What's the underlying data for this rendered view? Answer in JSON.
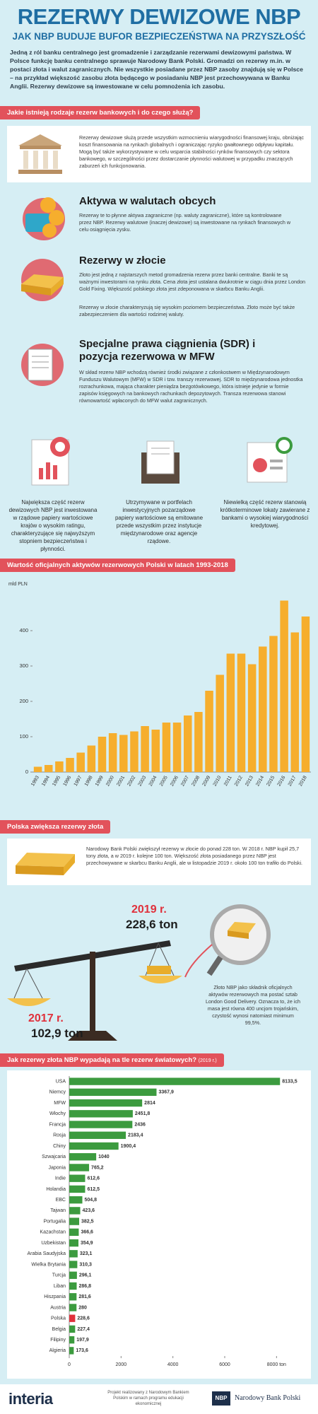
{
  "header": {
    "title": "REZERWY DEWIZOWE NBP",
    "subtitle": "JAK NBP BUDUJE BUFOR BEZPIECZEŃSTWA NA PRZYSZŁOŚĆ",
    "intro": "Jedną z ról banku centralnego jest gromadzenie i zarządzanie rezerwami dewizowymi państwa. W Polsce funkcję banku centralnego sprawuje Narodowy Bank Polski. Gromadzi on rezerwy m.in. w postaci złota i walut zagranicznych. Nie wszystkie posiadane przez NBP zasoby znajdują się w Polsce – na przykład większość zasobu złota będącego w posiadaniu NBP jest przechowywana w Banku Anglii. Rezerwy dewizowe są inwestowane w celu pomnożenia ich zasobu."
  },
  "types": {
    "heading": "Jakie istnieją rodzaje rezerw bankowych i do czego służą?",
    "intro": "Rezerwy dewizowe służą przede wszystkim wzmocnieniu wiarygodności finansowej kraju, obniżając koszt finansowania na rynkach globalnych i ograniczając ryzyko gwałtownego odpływu kapitału. Mogą być także wykorzystywane w celu wsparcia stabilności rynków finansowych czy sektora bankowego, w szczególności przez dostarczanie płynności walutowej w przypadku znaczących zaburzeń ich funkcjonowania.",
    "items": [
      {
        "title": "Aktywa w walutach obcych",
        "paragraphs": [
          "Rezerwy te to płynne aktywa zagraniczne (np. waluty zagraniczne), które są kontrolowane przez NBP. Rezerwy walutowe (inaczej dewizowe) są inwestowane na rynkach finansowych w celu osiągnięcia zysku."
        ]
      },
      {
        "title": "Rezerwy w złocie",
        "paragraphs": [
          "Złoto jest jedną z najstarszych metod gromadzenia rezerw przez banki centralne. Banki te są ważnymi inwestorami na rynku złota. Cena złota jest ustalana dwukrotnie w ciągu dnia przez London Gold Fixing. Większość polskiego złota jest zdeponowana w skarbcu Banku Anglii.",
          "Rezerwy w złocie charakteryzują się wysokim poziomem bezpieczeństwa. Złoto może być także zabezpieczeniem dla wartości rodzimej waluty."
        ]
      },
      {
        "title": "Specjalne prawa ciągnienia (SDR) i pozycja rezerwowa w MFW",
        "paragraphs": [
          "W skład rezerw NBP wchodzą również środki związane z członkostwem w Międzynarodowym Funduszu Walutowym (MFW) w SDR i tzw. transzy rezerwowej. SDR to międzynarodowa jednostka rozrachunkowa, mająca charakter pieniądza bezgotówkowego, która istnieje jedynie w formie zapisów księgowych na bankowych rachunkach depozytowych. Transza rezerwowa stanowi równowartość wpłaconych do MFW walut zagranicznych."
        ]
      }
    ]
  },
  "investments": [
    "Największa część rezerw dewizowych NBP jest inwestowana w rządowe papiery wartościowe krajów o wysokim ratingu, charakteryzujące się najwyższym stopniem bezpieczeństwa i płynności.",
    "Utrzymywane w portfelach inwestycyjnych pozarządowe papiery wartościowe są emitowane przede wszystkim przez instytucje międzynarodowe oraz agencje rządowe.",
    "Niewielką część rezerw stanowią krótkoterminowe lokaty zawierane z bankami o wysokiej wiarygodności kredytowej."
  ],
  "gold": {
    "heading": "Polska zwiększa rezerwy złota",
    "text": "Narodowy Bank Polski zwiększył rezerwy w złocie do ponad 228 ton. W 2018 r. NBP kupił 25,7 tony złota, a w 2019 r. kolejne 100 ton. Większość złota posiadanego przez NBP jest przechowywane w skarbcu Banku Anglii, ale w listopadzie 2019 r. około 100 ton trafiło do Polski.",
    "year_2019": "2019 r.",
    "tons_2019": "228,6 ton",
    "year_2017": "2017 r.",
    "tons_2017": "102,9 ton",
    "note": "Złoto NBP jako składnik oficjalnych aktywów rezerwowych ma postać sztab London Good Delivery. Oznacza to, że ich masa jest równa 400 uncjom trojańskim, czystość wynosi natomiast minimum 99,5%."
  },
  "footer": {
    "brand": "interia",
    "project": "Projekt realizowany z Narodowym Bankiem Polskim w ramach programu edukacji ekonomicznej",
    "nbp_short": "NBP",
    "nbp_name": "Narodowy Bank Polski"
  },
  "chart_data": [
    {
      "type": "bar",
      "orientation": "vertical",
      "title": "Wartość oficjalnych aktywów rezerwowych Polski w latach 1993-2018",
      "y_label": "mld PLN",
      "categories": [
        "1993",
        "1994",
        "1995",
        "1996",
        "1997",
        "1998",
        "1999",
        "2000",
        "2001",
        "2002",
        "2003",
        "2004",
        "2005",
        "2006",
        "2007",
        "2008",
        "2009",
        "2010",
        "2011",
        "2012",
        "2013",
        "2014",
        "2015",
        "2016",
        "2017",
        "2018"
      ],
      "values": [
        15,
        20,
        30,
        40,
        55,
        75,
        100,
        110,
        105,
        115,
        130,
        120,
        140,
        140,
        160,
        170,
        230,
        275,
        335,
        335,
        305,
        355,
        385,
        485,
        395,
        440
      ],
      "color": "#f6ae2d",
      "ylim": [
        0,
        500
      ],
      "yticks": [
        0,
        100,
        200,
        300,
        400
      ],
      "grid": false
    },
    {
      "type": "bar",
      "orientation": "horizontal",
      "title": "Jak rezerwy złota NBP wypadają na tle rezerw światowych?",
      "subtitle": "(2019 r.)",
      "categories": [
        "USA",
        "Niemcy",
        "MFW",
        "Włochy",
        "Francja",
        "Rosja",
        "Chiny",
        "Szwajcaria",
        "Japonia",
        "Indie",
        "Holandia",
        "EBC",
        "Tajwan",
        "Portugalia",
        "Kazachstan",
        "Uzbekistan",
        "Arabia Saudyjska",
        "Wielka Brytania",
        "Turcja",
        "Liban",
        "Hiszpania",
        "Austria",
        "Polska",
        "Belgia",
        "Filipiny",
        "Algieria"
      ],
      "values": [
        8133.5,
        3367.9,
        2814,
        2451.8,
        2436,
        2183.4,
        1900.4,
        1040,
        765.2,
        612.6,
        612.5,
        504.8,
        423.6,
        382.5,
        366.6,
        354.9,
        323.1,
        310.3,
        296.1,
        286.8,
        281.6,
        280,
        228.6,
        227.4,
        197.9,
        173.6
      ],
      "value_labels": [
        "8133,5",
        "3367,9",
        "2814",
        "2451,8",
        "2436",
        "2183,4",
        "1900,4",
        "1040",
        "765,2",
        "612,6",
        "612,5",
        "504,8",
        "423,6",
        "382,5",
        "366,6",
        "354,9",
        "323,1",
        "310,3",
        "296,1",
        "286,8",
        "281,6",
        "280",
        "228,6",
        "227,4",
        "197,9",
        "173,6"
      ],
      "colors": [
        "#3c9b3f",
        "#3c9b3f",
        "#3c9b3f",
        "#3c9b3f",
        "#3c9b3f",
        "#3c9b3f",
        "#3c9b3f",
        "#3c9b3f",
        "#3c9b3f",
        "#3c9b3f",
        "#3c9b3f",
        "#3c9b3f",
        "#3c9b3f",
        "#3c9b3f",
        "#3c9b3f",
        "#3c9b3f",
        "#3c9b3f",
        "#3c9b3f",
        "#3c9b3f",
        "#3c9b3f",
        "#3c9b3f",
        "#3c9b3f",
        "#e0303b",
        "#3c9b3f",
        "#3c9b3f",
        "#3c9b3f"
      ],
      "xlim": [
        0,
        9000
      ],
      "xticks": [
        0,
        2000,
        4000,
        6000,
        {
          "value": 8000,
          "label": "8000 ton"
        }
      ],
      "grid": false
    }
  ]
}
